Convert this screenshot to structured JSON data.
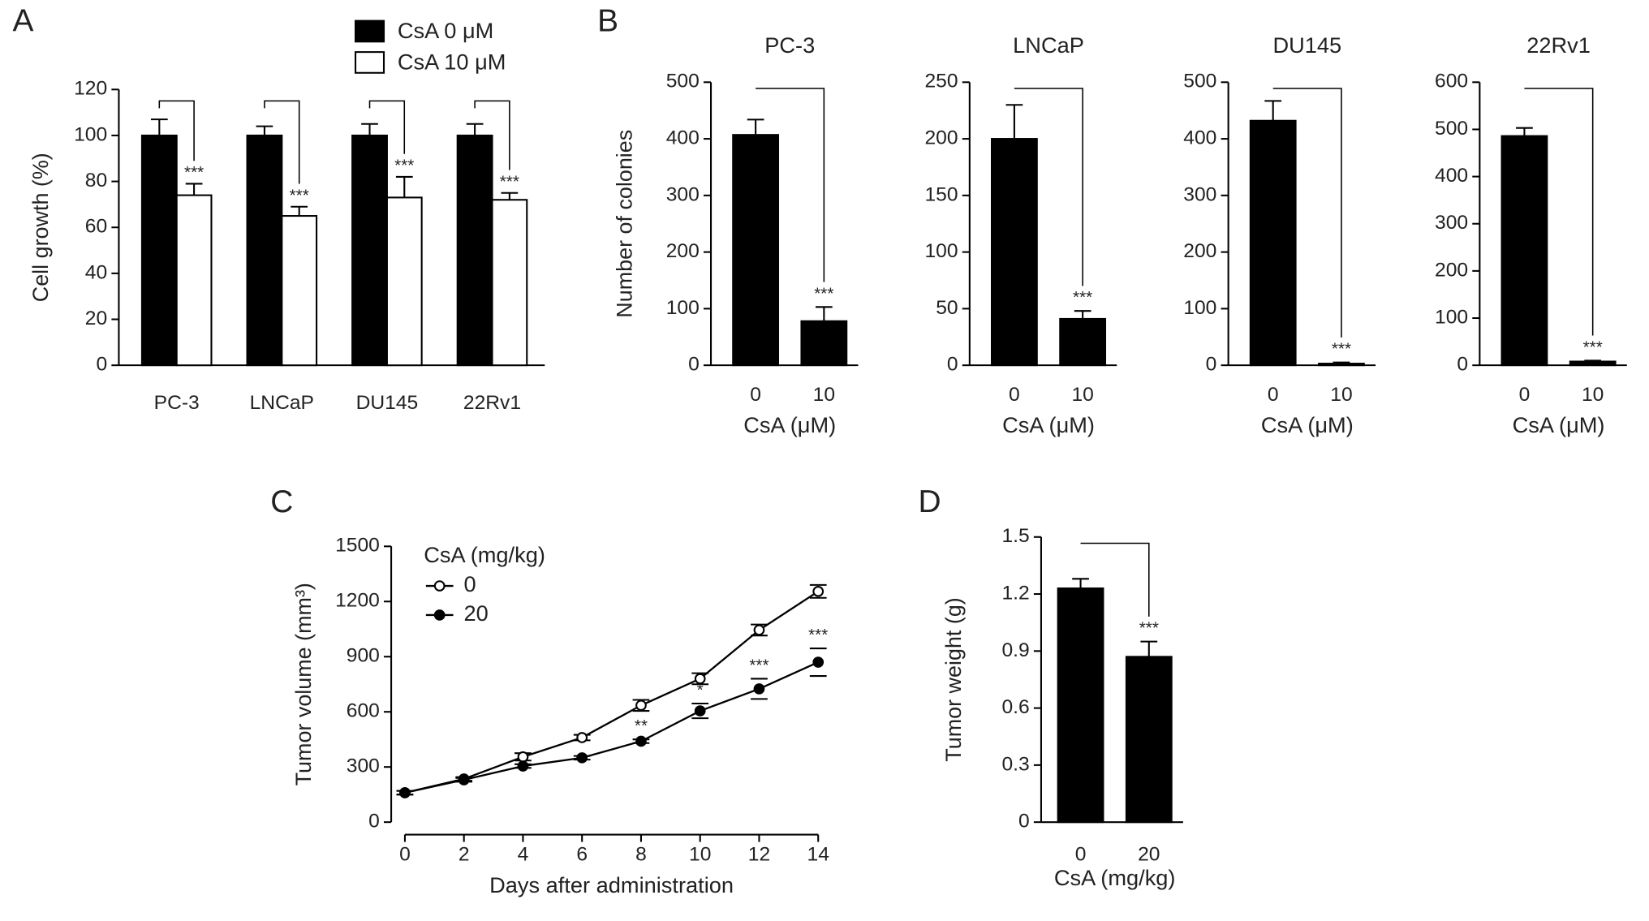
{
  "chart_data": [
    {
      "type": "bar",
      "panel_label": "A",
      "y_label": "Cell growth (%)",
      "categories": [
        "PC-3",
        "LNCaP",
        "DU145",
        "22Rv1"
      ],
      "series": [
        {
          "name": "CsA 0 μM",
          "color": "#000000",
          "values": [
            100,
            100,
            100,
            100
          ],
          "errors": [
            7,
            4,
            5,
            5
          ]
        },
        {
          "name": "CsA 10 μM",
          "color": "#ffffff",
          "values": [
            74,
            65,
            73,
            72
          ],
          "errors": [
            5,
            4,
            9,
            3
          ]
        }
      ],
      "annotations": [
        "***",
        "***",
        "***",
        "***"
      ],
      "ylim": [
        0,
        120
      ],
      "yticks": [
        0,
        20,
        40,
        60,
        80,
        100,
        120
      ]
    },
    {
      "type": "bar",
      "panel_label": "B",
      "title": "PC-3",
      "y_label": "Number of colonies",
      "x_label": "CsA (μM)",
      "categories": [
        "0",
        "10"
      ],
      "values": [
        407,
        78
      ],
      "errors": [
        27,
        25
      ],
      "color": "#000000",
      "annotation": "***",
      "ylim": [
        0,
        500
      ],
      "yticks": [
        0,
        100,
        200,
        300,
        400,
        500
      ]
    },
    {
      "type": "bar",
      "title": "LNCaP",
      "x_label": "CsA (μM)",
      "categories": [
        "0",
        "10"
      ],
      "values": [
        200,
        41
      ],
      "errors": [
        30,
        7
      ],
      "color": "#000000",
      "annotation": "***",
      "ylim": [
        0,
        250
      ],
      "yticks": [
        0,
        50,
        100,
        150,
        200,
        250
      ]
    },
    {
      "type": "bar",
      "title": "DU145",
      "x_label": "CsA (μM)",
      "categories": [
        "0",
        "10"
      ],
      "values": [
        432,
        3
      ],
      "errors": [
        35,
        2
      ],
      "color": "#000000",
      "annotation": "***",
      "ylim": [
        0,
        500
      ],
      "yticks": [
        0,
        100,
        200,
        300,
        400,
        500
      ]
    },
    {
      "type": "bar",
      "title": "22Rv1",
      "x_label": "CsA (μM)",
      "categories": [
        "0",
        "10"
      ],
      "values": [
        486,
        8
      ],
      "errors": [
        17,
        2
      ],
      "color": "#000000",
      "annotation": "***",
      "ylim": [
        0,
        600
      ],
      "yticks": [
        0,
        100,
        200,
        300,
        400,
        500,
        600
      ]
    },
    {
      "type": "line",
      "panel_label": "C",
      "y_label": "Tumor volume (mm³)",
      "x_label": "Days after administration",
      "legend_title": "CsA (mg/kg)",
      "x": [
        0,
        2,
        4,
        6,
        8,
        10,
        12,
        14
      ],
      "series": [
        {
          "name": "0",
          "color": "#000000",
          "marker": "open",
          "values": [
            160,
            235,
            355,
            460,
            635,
            780,
            1045,
            1255
          ],
          "errors": [
            10,
            10,
            20,
            15,
            30,
            30,
            30,
            35
          ]
        },
        {
          "name": "20",
          "color": "#000000",
          "marker": "filled",
          "values": [
            160,
            230,
            305,
            350,
            440,
            605,
            725,
            870
          ],
          "errors": [
            10,
            10,
            10,
            10,
            10,
            40,
            55,
            75
          ]
        }
      ],
      "annotations": [
        {
          "x": 8,
          "text": "**"
        },
        {
          "x": 10,
          "text": "*"
        },
        {
          "x": 12,
          "text": "***"
        },
        {
          "x": 14,
          "text": "***"
        }
      ],
      "xlim": [
        0,
        14
      ],
      "xticks": [
        0,
        2,
        4,
        6,
        8,
        10,
        12,
        14
      ],
      "ylim": [
        0,
        1500
      ],
      "yticks": [
        0,
        300,
        600,
        900,
        1200,
        1500
      ]
    },
    {
      "type": "bar",
      "panel_label": "D",
      "y_label": "Tumor weight (g)",
      "x_label": "CsA (mg/kg)",
      "categories": [
        "0",
        "20"
      ],
      "values": [
        1.23,
        0.87
      ],
      "errors": [
        0.05,
        0.08
      ],
      "color": "#000000",
      "annotation": "***",
      "ylim": [
        0,
        1.5
      ],
      "yticks": [
        0,
        0.3,
        0.6,
        0.9,
        1.2,
        1.5
      ]
    }
  ]
}
